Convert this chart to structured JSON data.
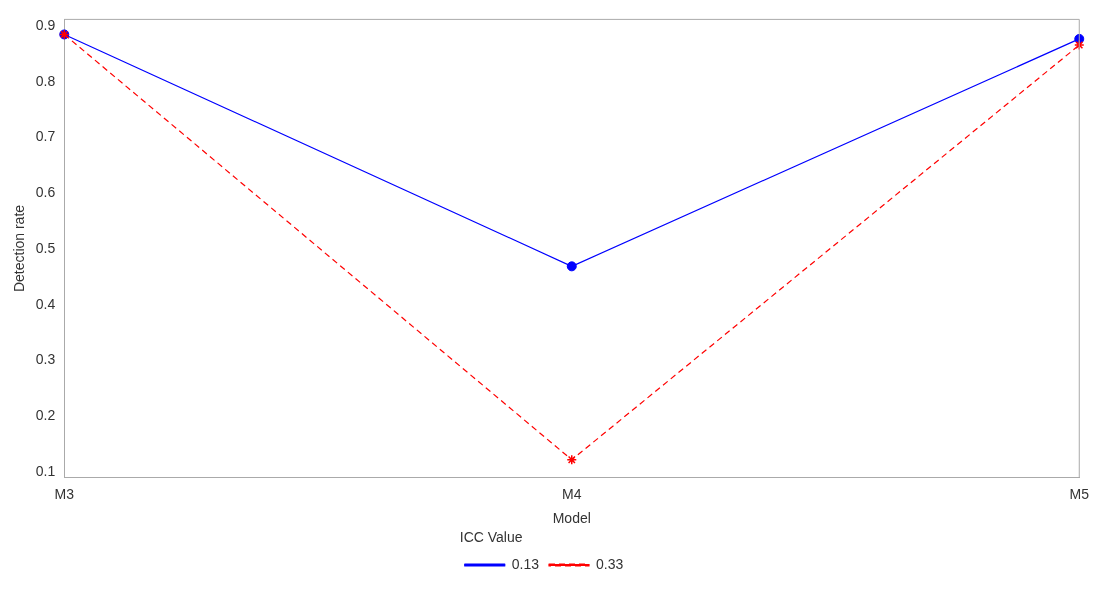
{
  "chart_data": {
    "type": "line",
    "xlabel": "Model",
    "ylabel": "Detection rate",
    "legend_title": "ICC Value",
    "categories": [
      "M3",
      "M4",
      "M5"
    ],
    "series": [
      {
        "name": "0.13",
        "color": "#0000ff",
        "values": [
          0.885,
          0.469,
          0.877
        ],
        "marker": "circle",
        "line_style": "solid"
      },
      {
        "name": "0.33",
        "color": "#ff0000",
        "values": [
          0.885,
          0.122,
          0.866
        ],
        "marker": "cross",
        "line_style": "dashed"
      }
    ],
    "ylim": [
      0.09,
      0.912
    ],
    "yticks": [
      0.1,
      0.2,
      0.3,
      0.4,
      0.5,
      0.6,
      0.7,
      0.8,
      0.9
    ],
    "grid": false,
    "legend": "bottom"
  }
}
